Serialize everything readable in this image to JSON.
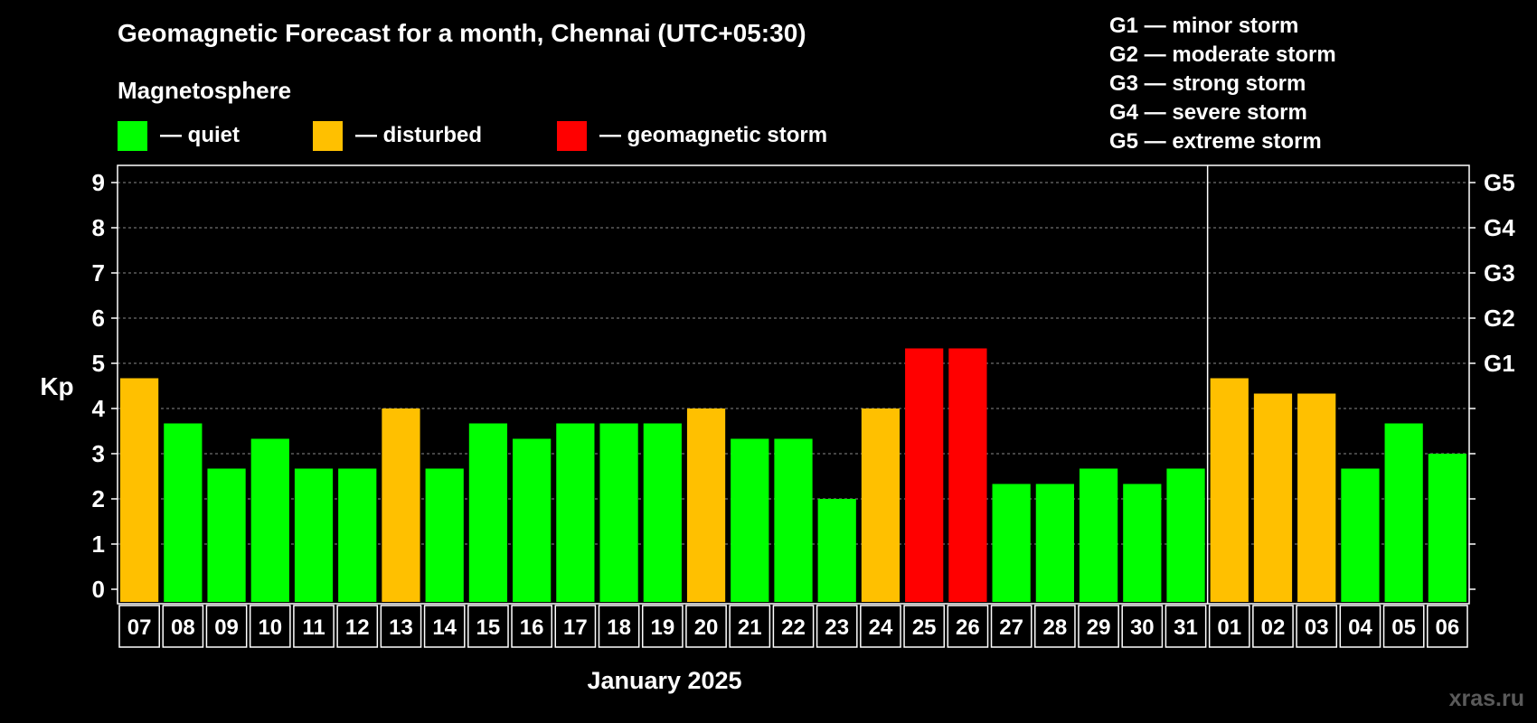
{
  "title": "Geomagnetic Forecast for a month, Chennai (UTC+05:30)",
  "legend": {
    "heading": "Magnetosphere",
    "items": [
      {
        "label": "— quiet",
        "color": "#00FF00"
      },
      {
        "label": "— disturbed",
        "color": "#FFC000"
      },
      {
        "label": "— geomagnetic storm",
        "color": "#FF0000"
      }
    ]
  },
  "storm_scale": [
    "G1 — minor storm",
    "G2 — moderate storm",
    "G3 — strong storm",
    "G4 — severe storm",
    "G5 — extreme storm"
  ],
  "month_label": "January 2025",
  "watermark": "xras.ru",
  "chart_data": {
    "type": "bar",
    "title": "Geomagnetic Forecast for a month, Chennai (UTC+05:30)",
    "ylabel": "Kp",
    "xlabel": "January 2025",
    "ylim": [
      0,
      9
    ],
    "yticks": [
      "0",
      "1",
      "2",
      "3",
      "4",
      "5",
      "6",
      "7",
      "8",
      "9"
    ],
    "right_ticks": [
      {
        "value": 5,
        "label": "G1"
      },
      {
        "value": 6,
        "label": "G2"
      },
      {
        "value": 7,
        "label": "G3"
      },
      {
        "value": 8,
        "label": "G4"
      },
      {
        "value": 9,
        "label": "G5"
      }
    ],
    "categories": [
      "07",
      "08",
      "09",
      "10",
      "11",
      "12",
      "13",
      "14",
      "15",
      "16",
      "17",
      "18",
      "19",
      "20",
      "21",
      "22",
      "23",
      "24",
      "25",
      "26",
      "27",
      "28",
      "29",
      "30",
      "31",
      "01",
      "02",
      "03",
      "04",
      "05",
      "06"
    ],
    "values": [
      4.67,
      3.67,
      2.67,
      3.33,
      2.67,
      2.67,
      4.0,
      2.67,
      3.67,
      3.33,
      3.67,
      3.67,
      3.67,
      4.0,
      3.33,
      3.33,
      2.0,
      4.0,
      5.33,
      5.33,
      2.33,
      2.33,
      2.67,
      2.33,
      2.67,
      4.67,
      4.33,
      4.33,
      2.67,
      3.67,
      3.0
    ],
    "levels": [
      "disturbed",
      "quiet",
      "quiet",
      "quiet",
      "quiet",
      "quiet",
      "disturbed",
      "quiet",
      "quiet",
      "quiet",
      "quiet",
      "quiet",
      "quiet",
      "disturbed",
      "quiet",
      "quiet",
      "quiet",
      "disturbed",
      "storm",
      "storm",
      "quiet",
      "quiet",
      "quiet",
      "quiet",
      "quiet",
      "disturbed",
      "disturbed",
      "disturbed",
      "quiet",
      "quiet",
      "quiet"
    ],
    "month_break_after": "31",
    "grid": true
  }
}
